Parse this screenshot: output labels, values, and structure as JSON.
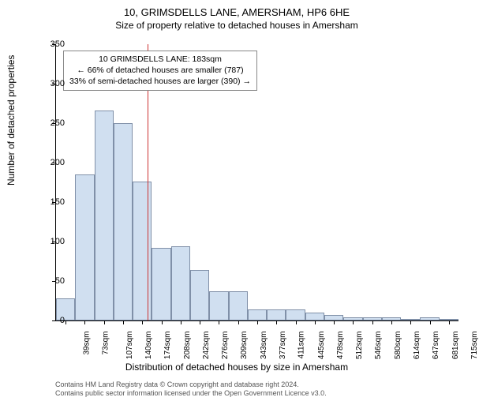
{
  "title": "10, GRIMSDELLS LANE, AMERSHAM, HP6 6HE",
  "subtitle": "Size of property relative to detached houses in Amersham",
  "ylabel": "Number of detached properties",
  "xlabel": "Distribution of detached houses by size in Amersham",
  "chart": {
    "type": "histogram",
    "background_color": "#ffffff",
    "bar_fill": "#d0dff0",
    "bar_border": "#8090a8",
    "marker_color": "#cc3333",
    "marker_x_value": 183,
    "ylim": [
      0,
      350
    ],
    "ytick_step": 50,
    "bar_width_ratio": 1.0,
    "yticks": [
      0,
      50,
      100,
      150,
      200,
      250,
      300,
      350
    ],
    "categories": [
      "39sqm",
      "73sqm",
      "107sqm",
      "140sqm",
      "174sqm",
      "208sqm",
      "242sqm",
      "276sqm",
      "309sqm",
      "343sqm",
      "377sqm",
      "411sqm",
      "445sqm",
      "478sqm",
      "512sqm",
      "546sqm",
      "580sqm",
      "614sqm",
      "647sqm",
      "681sqm",
      "715sqm"
    ],
    "values": [
      28,
      185,
      266,
      250,
      176,
      92,
      94,
      64,
      37,
      37,
      14,
      14,
      14,
      10,
      7,
      4,
      4,
      4,
      0,
      4,
      0
    ]
  },
  "annotation": {
    "line1": "10 GRIMSDELLS LANE: 183sqm",
    "line2": "← 66% of detached houses are smaller (787)",
    "line3": "33% of semi-detached houses are larger (390) →",
    "border_color": "#888888",
    "background_color": "#ffffff",
    "fontsize": 10.5
  },
  "footer": {
    "line1": "Contains HM Land Registry data © Crown copyright and database right 2024.",
    "line2": "Contains public sector information licensed under the Open Government Licence v3.0.",
    "color": "#555555",
    "fontsize": 9
  }
}
